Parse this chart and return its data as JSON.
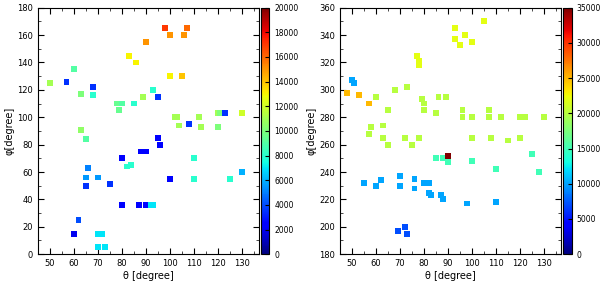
{
  "plot1": {
    "xlabel": "θ [degree]",
    "ylabel": "φ[degree]",
    "xlim": [
      45,
      137
    ],
    "ylim": [
      0,
      180
    ],
    "xticks": [
      50,
      60,
      70,
      80,
      90,
      100,
      110,
      120,
      130
    ],
    "yticks": [
      0,
      20,
      40,
      60,
      80,
      100,
      120,
      140,
      160,
      180
    ],
    "cmap": "jet",
    "clim": [
      0,
      20000
    ],
    "cticks": [
      0,
      2000,
      4000,
      6000,
      8000,
      10000,
      12000,
      14000,
      16000,
      18000,
      20000
    ],
    "points": [
      {
        "theta": 50,
        "phi": 125,
        "val": 11000
      },
      {
        "theta": 57,
        "phi": 126,
        "val": 3500
      },
      {
        "theta": 60,
        "phi": 135,
        "val": 9000
      },
      {
        "theta": 60,
        "phi": 15,
        "val": 2000
      },
      {
        "theta": 62,
        "phi": 25,
        "val": 4000
      },
      {
        "theta": 63,
        "phi": 117,
        "val": 10000
      },
      {
        "theta": 63,
        "phi": 91,
        "val": 10500
      },
      {
        "theta": 65,
        "phi": 56,
        "val": 5500
      },
      {
        "theta": 65,
        "phi": 50,
        "val": 3500
      },
      {
        "theta": 65,
        "phi": 84,
        "val": 9000
      },
      {
        "theta": 66,
        "phi": 63,
        "val": 5000
      },
      {
        "theta": 68,
        "phi": 122,
        "val": 3500
      },
      {
        "theta": 68,
        "phi": 116,
        "val": 8000
      },
      {
        "theta": 70,
        "phi": 56,
        "val": 5500
      },
      {
        "theta": 70,
        "phi": 15,
        "val": 7000
      },
      {
        "theta": 70,
        "phi": 5,
        "val": 7000
      },
      {
        "theta": 72,
        "phi": 15,
        "val": 7000
      },
      {
        "theta": 73,
        "phi": 5,
        "val": 7000
      },
      {
        "theta": 75,
        "phi": 51,
        "val": 3500
      },
      {
        "theta": 78,
        "phi": 110,
        "val": 9500
      },
      {
        "theta": 79,
        "phi": 105,
        "val": 9500
      },
      {
        "theta": 80,
        "phi": 36,
        "val": 2500
      },
      {
        "theta": 80,
        "phi": 70,
        "val": 2500
      },
      {
        "theta": 80,
        "phi": 110,
        "val": 9000
      },
      {
        "theta": 82,
        "phi": 64,
        "val": 8000
      },
      {
        "theta": 83,
        "phi": 145,
        "val": 13000
      },
      {
        "theta": 84,
        "phi": 65,
        "val": 8000
      },
      {
        "theta": 85,
        "phi": 110,
        "val": 8000
      },
      {
        "theta": 86,
        "phi": 140,
        "val": 13000
      },
      {
        "theta": 87,
        "phi": 36,
        "val": 2500
      },
      {
        "theta": 88,
        "phi": 75,
        "val": 2500
      },
      {
        "theta": 89,
        "phi": 115,
        "val": 11000
      },
      {
        "theta": 90,
        "phi": 36,
        "val": 2500
      },
      {
        "theta": 90,
        "phi": 75,
        "val": 2500
      },
      {
        "theta": 90,
        "phi": 155,
        "val": 15000
      },
      {
        "theta": 92,
        "phi": 36,
        "val": 7000
      },
      {
        "theta": 93,
        "phi": 36,
        "val": 7000
      },
      {
        "theta": 93,
        "phi": 120,
        "val": 8000
      },
      {
        "theta": 95,
        "phi": 85,
        "val": 2500
      },
      {
        "theta": 95,
        "phi": 115,
        "val": 3500
      },
      {
        "theta": 96,
        "phi": 80,
        "val": 2500
      },
      {
        "theta": 98,
        "phi": 165,
        "val": 17000
      },
      {
        "theta": 100,
        "phi": 55,
        "val": 2500
      },
      {
        "theta": 100,
        "phi": 160,
        "val": 15000
      },
      {
        "theta": 100,
        "phi": 130,
        "val": 13000
      },
      {
        "theta": 102,
        "phi": 100,
        "val": 11000
      },
      {
        "theta": 103,
        "phi": 100,
        "val": 11000
      },
      {
        "theta": 104,
        "phi": 94,
        "val": 11000
      },
      {
        "theta": 105,
        "phi": 130,
        "val": 14000
      },
      {
        "theta": 106,
        "phi": 160,
        "val": 15000
      },
      {
        "theta": 107,
        "phi": 165,
        "val": 16000
      },
      {
        "theta": 108,
        "phi": 95,
        "val": 3500
      },
      {
        "theta": 110,
        "phi": 55,
        "val": 8000
      },
      {
        "theta": 110,
        "phi": 70,
        "val": 8000
      },
      {
        "theta": 112,
        "phi": 100,
        "val": 11000
      },
      {
        "theta": 113,
        "phi": 93,
        "val": 11000
      },
      {
        "theta": 120,
        "phi": 103,
        "val": 11000
      },
      {
        "theta": 120,
        "phi": 93,
        "val": 10000
      },
      {
        "theta": 121,
        "phi": 103,
        "val": 10000
      },
      {
        "theta": 123,
        "phi": 103,
        "val": 3500
      },
      {
        "theta": 125,
        "phi": 55,
        "val": 8000
      },
      {
        "theta": 130,
        "phi": 103,
        "val": 12000
      },
      {
        "theta": 130,
        "phi": 60,
        "val": 6000
      }
    ]
  },
  "plot2": {
    "xlabel": "θ [degree]",
    "ylabel": "φ[degree]",
    "xlim": [
      45,
      137
    ],
    "ylim": [
      180,
      360
    ],
    "xticks": [
      50,
      60,
      70,
      80,
      90,
      100,
      110,
      120,
      130
    ],
    "yticks": [
      180,
      200,
      220,
      240,
      260,
      280,
      300,
      320,
      340,
      360
    ],
    "cmap": "jet",
    "clim": [
      0,
      35000
    ],
    "cticks": [
      0,
      5000,
      10000,
      15000,
      20000,
      25000,
      30000,
      35000
    ],
    "points": [
      {
        "theta": 48,
        "phi": 298,
        "val": 25000
      },
      {
        "theta": 50,
        "phi": 307,
        "val": 10000
      },
      {
        "theta": 51,
        "phi": 305,
        "val": 10000
      },
      {
        "theta": 53,
        "phi": 296,
        "val": 25000
      },
      {
        "theta": 55,
        "phi": 232,
        "val": 10000
      },
      {
        "theta": 57,
        "phi": 290,
        "val": 25000
      },
      {
        "theta": 57,
        "phi": 268,
        "val": 20000
      },
      {
        "theta": 58,
        "phi": 273,
        "val": 20000
      },
      {
        "theta": 60,
        "phi": 230,
        "val": 10000
      },
      {
        "theta": 60,
        "phi": 295,
        "val": 20000
      },
      {
        "theta": 62,
        "phi": 234,
        "val": 10000
      },
      {
        "theta": 63,
        "phi": 265,
        "val": 20000
      },
      {
        "theta": 63,
        "phi": 274,
        "val": 20000
      },
      {
        "theta": 65,
        "phi": 260,
        "val": 20000
      },
      {
        "theta": 65,
        "phi": 285,
        "val": 20000
      },
      {
        "theta": 68,
        "phi": 300,
        "val": 20000
      },
      {
        "theta": 69,
        "phi": 197,
        "val": 7000
      },
      {
        "theta": 70,
        "phi": 230,
        "val": 10000
      },
      {
        "theta": 70,
        "phi": 237,
        "val": 10000
      },
      {
        "theta": 72,
        "phi": 200,
        "val": 7000
      },
      {
        "theta": 72,
        "phi": 265,
        "val": 20000
      },
      {
        "theta": 73,
        "phi": 195,
        "val": 7000
      },
      {
        "theta": 73,
        "phi": 302,
        "val": 20000
      },
      {
        "theta": 75,
        "phi": 260,
        "val": 20000
      },
      {
        "theta": 76,
        "phi": 228,
        "val": 10000
      },
      {
        "theta": 76,
        "phi": 235,
        "val": 10000
      },
      {
        "theta": 77,
        "phi": 325,
        "val": 22000
      },
      {
        "theta": 78,
        "phi": 265,
        "val": 20000
      },
      {
        "theta": 78,
        "phi": 318,
        "val": 22000
      },
      {
        "theta": 78,
        "phi": 321,
        "val": 22000
      },
      {
        "theta": 79,
        "phi": 293,
        "val": 20000
      },
      {
        "theta": 80,
        "phi": 285,
        "val": 20000
      },
      {
        "theta": 80,
        "phi": 290,
        "val": 20000
      },
      {
        "theta": 80,
        "phi": 232,
        "val": 10000
      },
      {
        "theta": 82,
        "phi": 232,
        "val": 10000
      },
      {
        "theta": 82,
        "phi": 225,
        "val": 10000
      },
      {
        "theta": 83,
        "phi": 223,
        "val": 10000
      },
      {
        "theta": 85,
        "phi": 250,
        "val": 15000
      },
      {
        "theta": 85,
        "phi": 283,
        "val": 20000
      },
      {
        "theta": 86,
        "phi": 295,
        "val": 20000
      },
      {
        "theta": 87,
        "phi": 223,
        "val": 10000
      },
      {
        "theta": 88,
        "phi": 220,
        "val": 10000
      },
      {
        "theta": 88,
        "phi": 250,
        "val": 15000
      },
      {
        "theta": 89,
        "phi": 295,
        "val": 20000
      },
      {
        "theta": 90,
        "phi": 252,
        "val": 35000
      },
      {
        "theta": 90,
        "phi": 247,
        "val": 15000
      },
      {
        "theta": 93,
        "phi": 337,
        "val": 22000
      },
      {
        "theta": 93,
        "phi": 345,
        "val": 22000
      },
      {
        "theta": 95,
        "phi": 333,
        "val": 22000
      },
      {
        "theta": 96,
        "phi": 280,
        "val": 20000
      },
      {
        "theta": 96,
        "phi": 285,
        "val": 20000
      },
      {
        "theta": 97,
        "phi": 340,
        "val": 22000
      },
      {
        "theta": 98,
        "phi": 217,
        "val": 10000
      },
      {
        "theta": 100,
        "phi": 265,
        "val": 20000
      },
      {
        "theta": 100,
        "phi": 248,
        "val": 15000
      },
      {
        "theta": 100,
        "phi": 280,
        "val": 20000
      },
      {
        "theta": 100,
        "phi": 335,
        "val": 22000
      },
      {
        "theta": 105,
        "phi": 350,
        "val": 22000
      },
      {
        "theta": 107,
        "phi": 280,
        "val": 20000
      },
      {
        "theta": 107,
        "phi": 285,
        "val": 20000
      },
      {
        "theta": 108,
        "phi": 265,
        "val": 20000
      },
      {
        "theta": 110,
        "phi": 218,
        "val": 10000
      },
      {
        "theta": 110,
        "phi": 242,
        "val": 15000
      },
      {
        "theta": 112,
        "phi": 280,
        "val": 20000
      },
      {
        "theta": 115,
        "phi": 263,
        "val": 20000
      },
      {
        "theta": 120,
        "phi": 265,
        "val": 20000
      },
      {
        "theta": 120,
        "phi": 280,
        "val": 20000
      },
      {
        "theta": 122,
        "phi": 280,
        "val": 20000
      },
      {
        "theta": 125,
        "phi": 253,
        "val": 15000
      },
      {
        "theta": 128,
        "phi": 240,
        "val": 15000
      },
      {
        "theta": 130,
        "phi": 280,
        "val": 20000
      }
    ]
  },
  "marker_size": 18,
  "marker": "s",
  "fig_width": 6.06,
  "fig_height": 2.85,
  "dpi": 100
}
